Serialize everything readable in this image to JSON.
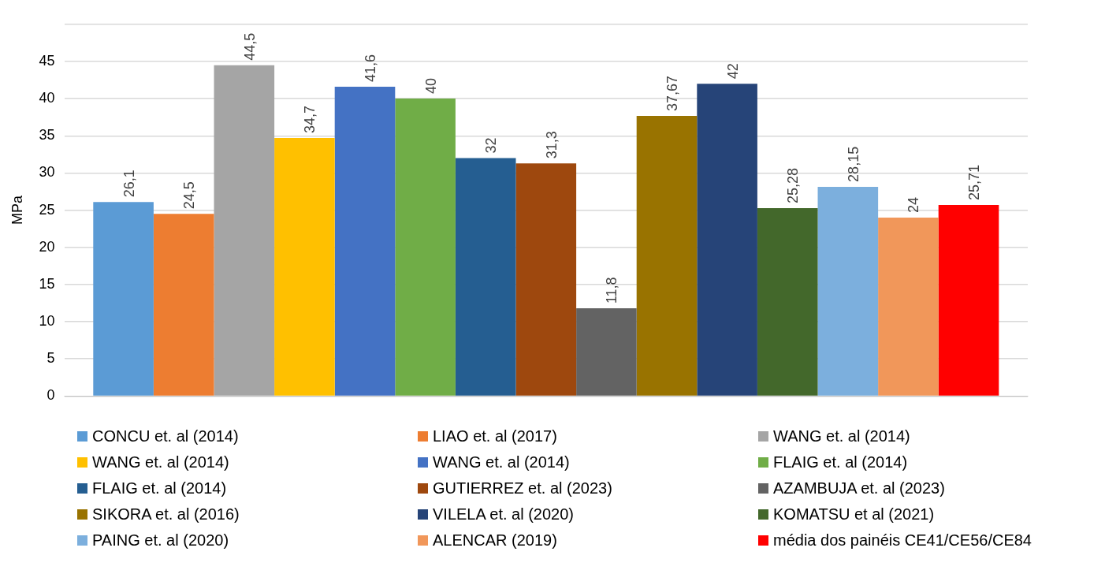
{
  "chart_data": {
    "type": "bar",
    "ylabel": "MPa",
    "categories": [
      null
    ],
    "ylim": [
      0,
      50
    ],
    "yticks": [
      0,
      5,
      10,
      15,
      20,
      25,
      30,
      35,
      40,
      45,
      {
        "value": 50,
        "label": null
      }
    ],
    "grid": "y",
    "legend": "bottom",
    "series": [
      {
        "name": "CONCU et. al (2014)",
        "color": "#5b9bd5",
        "values": [
          26.1
        ],
        "value_labels": [
          "26,1"
        ]
      },
      {
        "name": "LIAO et. al (2017)",
        "color": "#ed7d31",
        "values": [
          24.5
        ],
        "value_labels": [
          "24,5"
        ]
      },
      {
        "name": "WANG et. al (2014)",
        "color": "#a5a5a5",
        "values": [
          44.5
        ],
        "value_labels": [
          "44,5"
        ]
      },
      {
        "name": "WANG et. al (2014)",
        "color": "#ffc000",
        "values": [
          34.7
        ],
        "value_labels": [
          "34,7"
        ]
      },
      {
        "name": "WANG et. al (2014)",
        "color": "#4472c4",
        "values": [
          41.6
        ],
        "value_labels": [
          "41,6"
        ]
      },
      {
        "name": "FLAIG et. al (2014)",
        "color": "#70ad47",
        "values": [
          40
        ],
        "value_labels": [
          "40"
        ]
      },
      {
        "name": "FLAIG et. al (2014)",
        "color": "#255e91",
        "values": [
          32
        ],
        "value_labels": [
          "32"
        ]
      },
      {
        "name": "GUTIERREZ et. al (2023)",
        "color": "#9e480e",
        "values": [
          31.3
        ],
        "value_labels": [
          "31,3"
        ]
      },
      {
        "name": "AZAMBUJA et. al (2023)",
        "color": "#636363",
        "values": [
          11.8
        ],
        "value_labels": [
          "11,8"
        ]
      },
      {
        "name": "SIKORA et. al (2016)",
        "color": "#997300",
        "values": [
          37.67
        ],
        "value_labels": [
          "37,67"
        ]
      },
      {
        "name": "VILELA et. al (2020)",
        "color": "#264478",
        "values": [
          42
        ],
        "value_labels": [
          "42"
        ]
      },
      {
        "name": "KOMATSU et al (2021)",
        "color": "#43682b",
        "values": [
          25.28
        ],
        "value_labels": [
          "25,28"
        ]
      },
      {
        "name": "PAING et. al (2020)",
        "color": "#7cafdd",
        "values": [
          28.15
        ],
        "value_labels": [
          "28,15"
        ]
      },
      {
        "name": "ALENCAR (2019)",
        "color": "#f1975a",
        "values": [
          24
        ],
        "value_labels": [
          "24"
        ]
      },
      {
        "name": "média dos painéis CE41/CE56/CE84",
        "color": "#ff0000",
        "values": [
          25.71
        ],
        "value_labels": [
          "25,71"
        ]
      }
    ]
  }
}
